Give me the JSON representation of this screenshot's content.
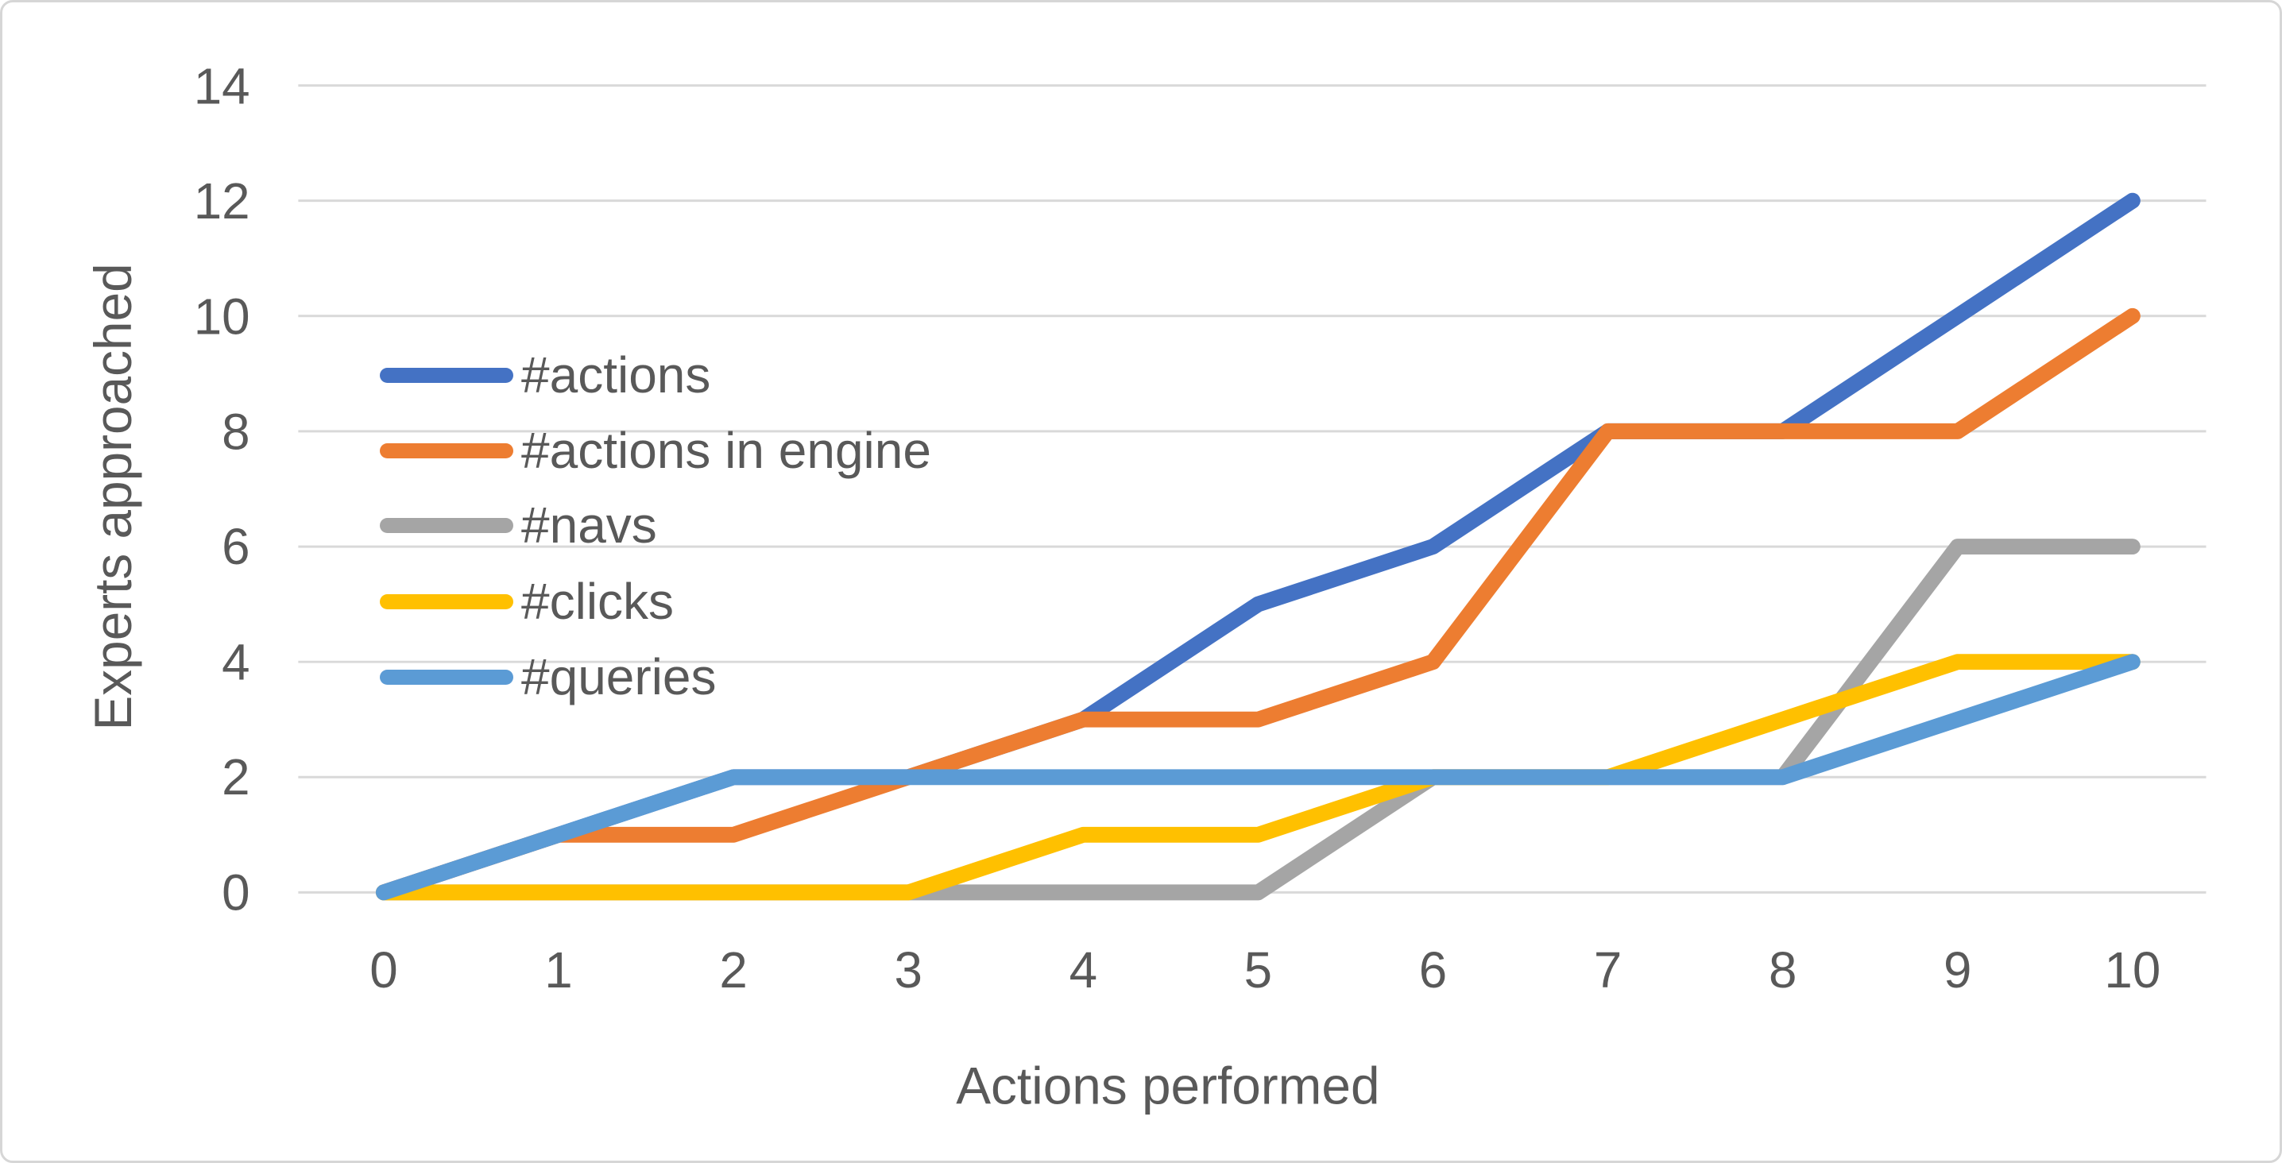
{
  "chart": {
    "background": "#FFFFFF",
    "border_color": "#D6D6D6",
    "text_color": "#595959",
    "gridline_color": "#D9D9D9"
  },
  "chart_data": {
    "type": "line",
    "title": "",
    "xlabel": "Actions performed",
    "ylabel": "Experts approached",
    "x": [
      0,
      1,
      2,
      3,
      4,
      5,
      6,
      7,
      8,
      9,
      10
    ],
    "xlim": [
      0,
      10
    ],
    "ylim": [
      0,
      14
    ],
    "yticks": [
      0,
      2,
      4,
      6,
      8,
      10,
      12,
      14
    ],
    "grid": "horizontal",
    "legend_position": "inside-top-left",
    "series": [
      {
        "name": "#actions",
        "color": "#4472C4",
        "values": [
          0,
          1,
          2,
          2,
          3,
          5,
          6,
          8,
          8,
          10,
          12
        ]
      },
      {
        "name": "#actions in engine",
        "color": "#ED7D31",
        "values": [
          0,
          1,
          1,
          2,
          3,
          3,
          4,
          8,
          8,
          8,
          10
        ]
      },
      {
        "name": "#navs",
        "color": "#A5A5A5",
        "values": [
          0,
          0,
          0,
          0,
          0,
          0,
          2,
          2,
          2,
          6,
          6
        ]
      },
      {
        "name": "#clicks",
        "color": "#FFC000",
        "values": [
          0,
          0,
          0,
          0,
          1,
          1,
          2,
          2,
          3,
          4,
          4
        ]
      },
      {
        "name": "#queries",
        "color": "#5B9BD5",
        "values": [
          0,
          1,
          2,
          2,
          2,
          2,
          2,
          2,
          2,
          3,
          4
        ]
      }
    ]
  }
}
